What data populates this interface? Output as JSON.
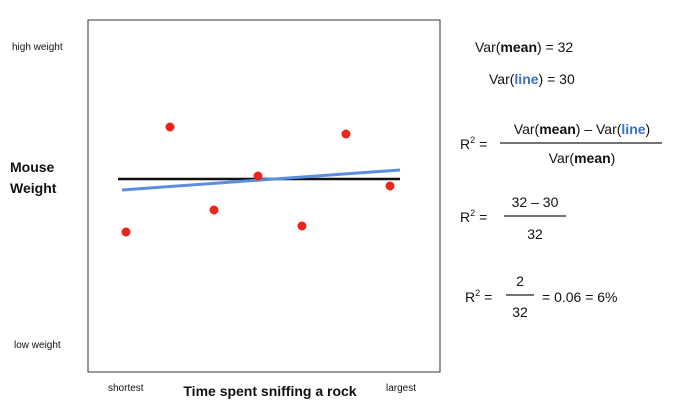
{
  "plot": {
    "y_high": "high weight",
    "y_low": "low weight",
    "y_label": [
      "Mouse",
      "Weight"
    ],
    "x_low": "shortest",
    "x_label": "Time spent sniffing a rock",
    "x_high": "largest"
  },
  "var_mean": [
    "Var(",
    "mean",
    ") = 32"
  ],
  "var_line": [
    "Var(",
    "line",
    ") = 30"
  ],
  "r2": {
    "base": "R",
    "sup": "2",
    "eq": "="
  },
  "step1": {
    "numerator": [
      "Var(",
      "mean",
      ") – Var(",
      "line",
      ")"
    ],
    "denominator": [
      "Var(",
      "mean",
      ")"
    ]
  },
  "step2": {
    "numerator": "32 – 30",
    "denominator": "32"
  },
  "step3": {
    "numerator": "2",
    "denominator": "32",
    "result": "= 0.06 = 6%"
  }
}
